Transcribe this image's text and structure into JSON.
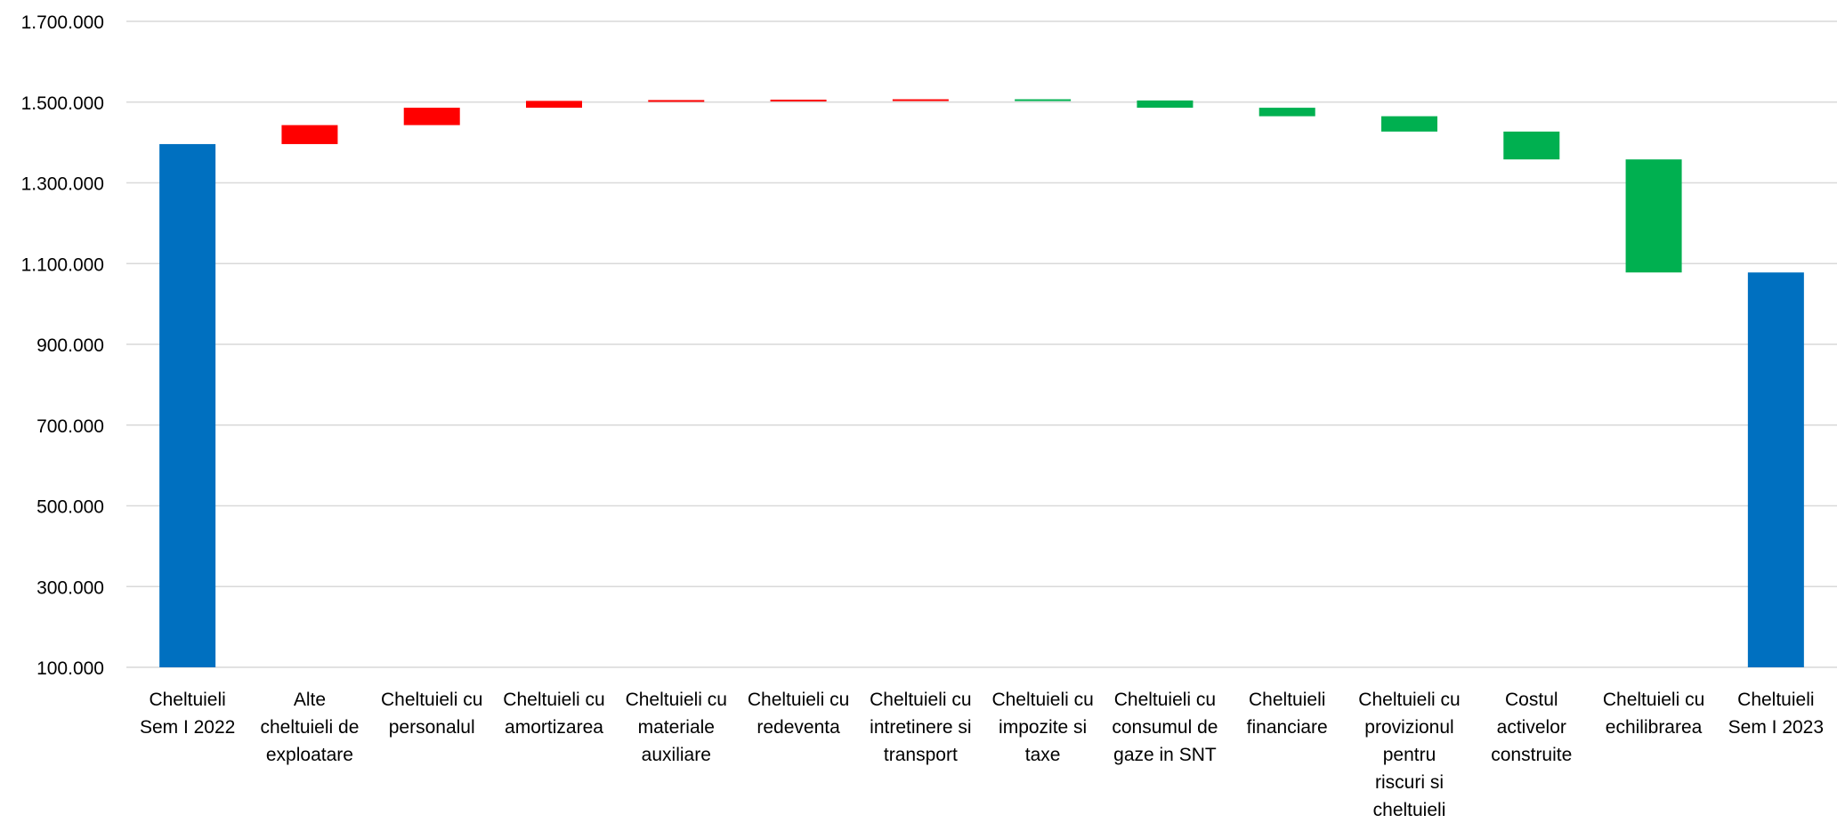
{
  "chart_data": {
    "type": "bar",
    "subtype": "waterfall",
    "title": "",
    "xlabel": "",
    "ylabel": "",
    "ylim": [
      100000,
      1700000
    ],
    "yticks": [
      "100.000",
      "300.000",
      "500.000",
      "700.000",
      "900.000",
      "1.100.000",
      "1.300.000",
      "1.500.000",
      "1.700.000"
    ],
    "ytick_values": [
      100000,
      300000,
      500000,
      700000,
      900000,
      1100000,
      1300000,
      1500000,
      1700000
    ],
    "grid": true,
    "legend": "none",
    "colors": {
      "total": "#0070c0",
      "increase": "#ff0000",
      "decrease": "#00b050"
    },
    "categories": [
      [
        "Cheltuieli",
        "Sem I 2022"
      ],
      [
        "Alte",
        "cheltuieli de",
        "exploatare"
      ],
      [
        "Cheltuieli cu",
        "personalul"
      ],
      [
        "Cheltuieli cu",
        "amortizarea"
      ],
      [
        "Cheltuieli cu",
        "materiale",
        "auxiliare"
      ],
      [
        "Cheltuieli cu",
        "redeventa"
      ],
      [
        "Cheltuieli cu",
        "intretinere si",
        "transport"
      ],
      [
        "Cheltuieli cu",
        "impozite si",
        "taxe"
      ],
      [
        "Cheltuieli cu",
        "consumul de",
        "gaze in SNT"
      ],
      [
        "Cheltuieli",
        "financiare"
      ],
      [
        "Cheltuieli cu",
        "provizionul",
        "pentru",
        "riscuri si",
        "cheltuieli"
      ],
      [
        "Costul",
        "activelor",
        "construite"
      ],
      [
        "Cheltuieli cu",
        "echilibrarea"
      ],
      [
        "Cheltuieli",
        "Sem I 2023"
      ]
    ],
    "bars": [
      {
        "kind": "total",
        "start": 100000,
        "end": 1396000
      },
      {
        "kind": "increase",
        "start": 1396000,
        "end": 1443000
      },
      {
        "kind": "increase",
        "start": 1443000,
        "end": 1486000
      },
      {
        "kind": "increase",
        "start": 1486000,
        "end": 1503000
      },
      {
        "kind": "increase",
        "start": 1503000,
        "end": 1505000
      },
      {
        "kind": "increase",
        "start": 1505000,
        "end": 1506000
      },
      {
        "kind": "increase",
        "start": 1506000,
        "end": 1507000
      },
      {
        "kind": "decrease",
        "start": 1507000,
        "end": 1504000
      },
      {
        "kind": "decrease",
        "start": 1504000,
        "end": 1486000
      },
      {
        "kind": "decrease",
        "start": 1486000,
        "end": 1465000
      },
      {
        "kind": "decrease",
        "start": 1465000,
        "end": 1427000
      },
      {
        "kind": "decrease",
        "start": 1427000,
        "end": 1358000
      },
      {
        "kind": "decrease",
        "start": 1358000,
        "end": 1078000
      },
      {
        "kind": "total",
        "start": 100000,
        "end": 1078000
      }
    ]
  }
}
